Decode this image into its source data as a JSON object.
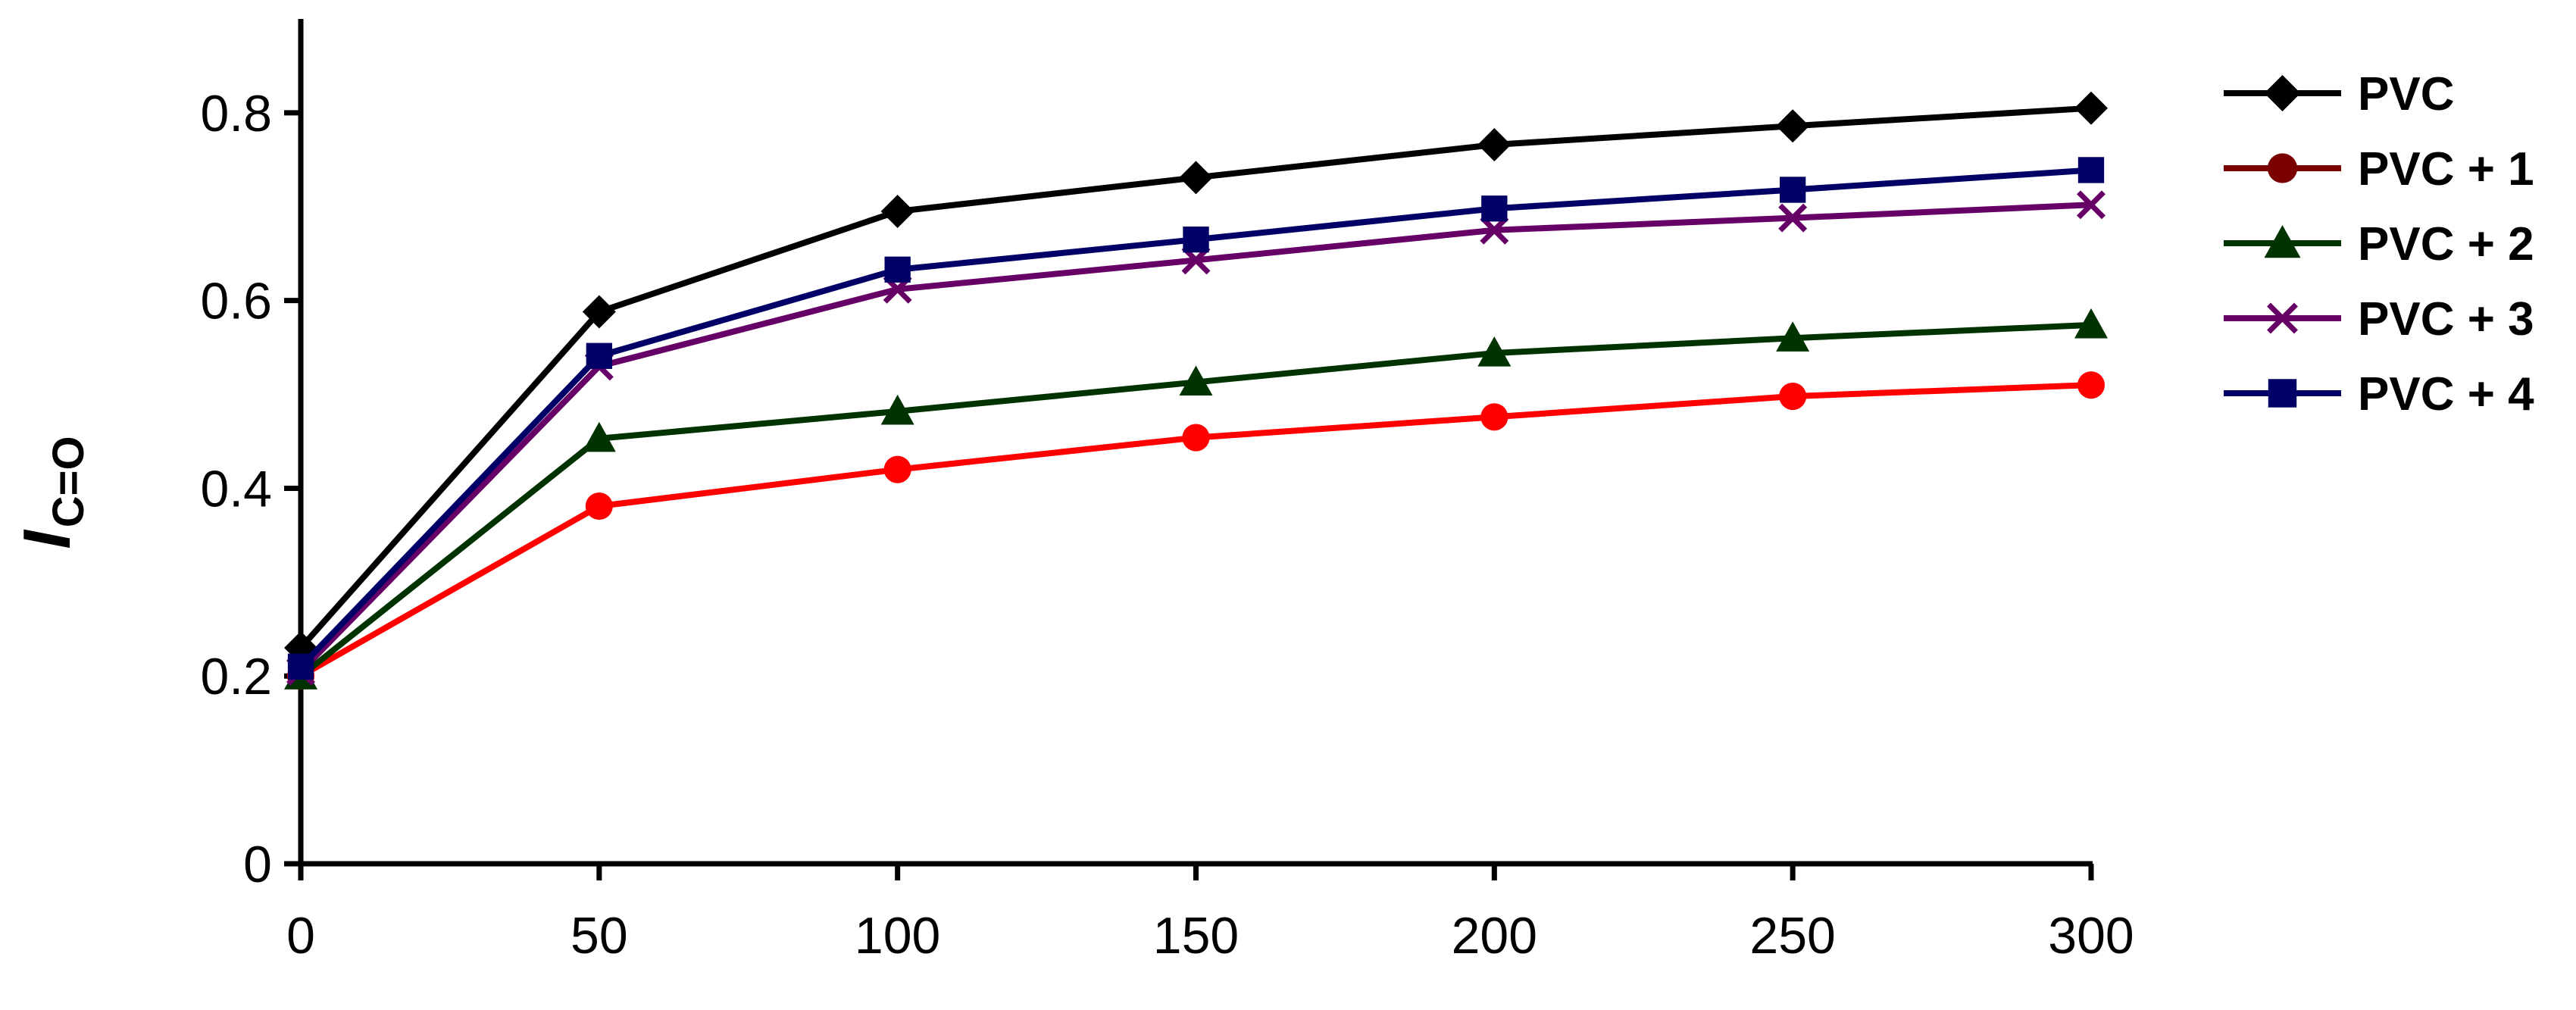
{
  "chart_data": {
    "type": "line",
    "ylabel": {
      "main": "I",
      "subscript": "C=O"
    },
    "xlabel": "",
    "x": [
      0,
      50,
      100,
      150,
      200,
      250,
      300
    ],
    "xlim": [
      0,
      300
    ],
    "ylim": [
      0,
      0.9
    ],
    "xticks": [
      0,
      50,
      100,
      150,
      200,
      250,
      300
    ],
    "yticks": [
      0,
      0.2,
      0.4,
      0.6,
      0.8
    ],
    "xtick_labels": [
      "0",
      "50",
      "100",
      "150",
      "200",
      "250",
      "300"
    ],
    "ytick_labels": [
      "0",
      "0.2",
      "0.4",
      "0.6",
      "0.8"
    ],
    "grid": false,
    "legend_position": "right",
    "series": [
      {
        "name": "PVC",
        "color": "#000000",
        "marker": "diamond",
        "values": [
          0.23,
          0.588,
          0.695,
          0.731,
          0.766,
          0.786,
          0.805
        ]
      },
      {
        "name": "PVC + 1",
        "color": "#7b0000",
        "marker": "circle",
        "values": [
          0.2,
          0.381,
          0.42,
          0.454,
          0.476,
          0.498,
          0.51
        ]
      },
      {
        "name": "PVC + 2",
        "color": "#003300",
        "marker": "triangle",
        "values": [
          0.2,
          0.453,
          0.482,
          0.513,
          0.544,
          0.56,
          0.574
        ]
      },
      {
        "name": "PVC + 3",
        "color": "#660066",
        "marker": "x",
        "values": [
          0.205,
          0.53,
          0.612,
          0.643,
          0.675,
          0.688,
          0.702
        ]
      },
      {
        "name": "PVC + 4",
        "color": "#000066",
        "marker": "square",
        "values": [
          0.21,
          0.541,
          0.633,
          0.665,
          0.698,
          0.718,
          0.739
        ]
      }
    ],
    "line_overrides": {
      "PVC + 1": "#ff0000"
    }
  }
}
